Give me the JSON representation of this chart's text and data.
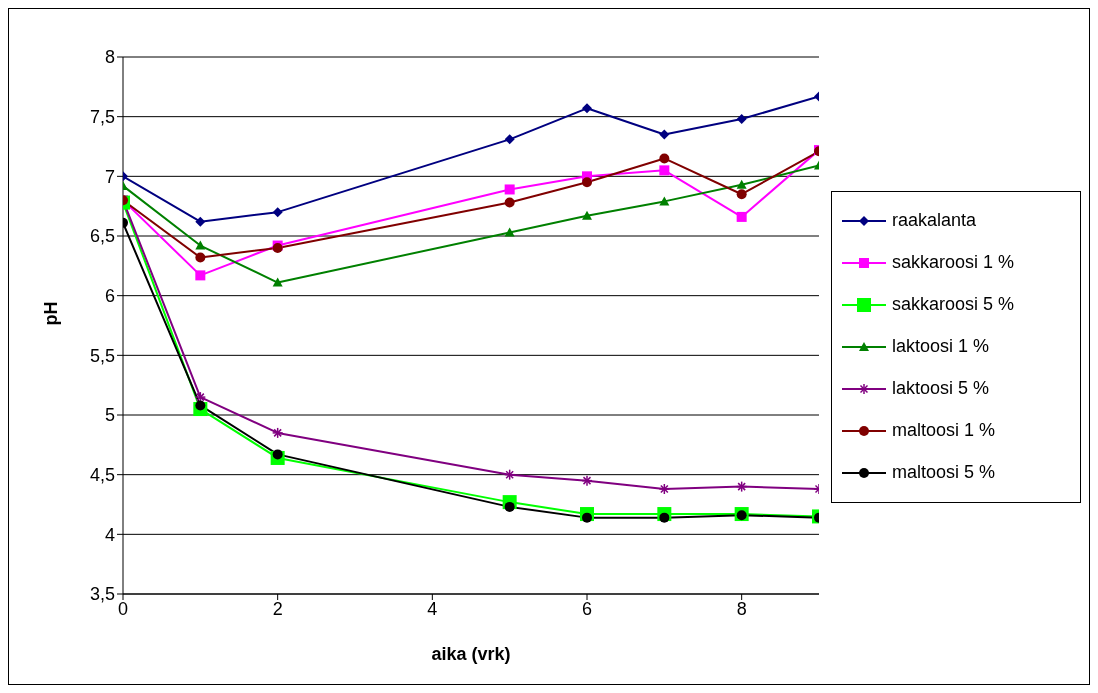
{
  "chart_data": {
    "type": "line",
    "xlabel": "aika (vrk)",
    "ylabel": "pH",
    "x": [
      0,
      1,
      2,
      5,
      6,
      7,
      8,
      9
    ],
    "xlim": [
      0,
      9
    ],
    "xticks": [
      0,
      2,
      4,
      6,
      8
    ],
    "ylim": [
      3.5,
      8
    ],
    "yticks": [
      {
        "value": 3.5,
        "label": "3,5"
      },
      4,
      {
        "value": 4.5,
        "label": "4,5"
      },
      5,
      {
        "value": 5.5,
        "label": "5,5"
      },
      6,
      {
        "value": 6.5,
        "label": "6,5"
      },
      7,
      {
        "value": 7.5,
        "label": "7,5"
      },
      8
    ],
    "grid": "y",
    "legend": "right",
    "line_style": "solid",
    "series": [
      {
        "name": "raakalanta",
        "color": "#000080",
        "marker": "diamond",
        "values": [
          7.0,
          6.62,
          6.7,
          7.31,
          7.57,
          7.35,
          7.48,
          7.67
        ]
      },
      {
        "name": "sakkaroosi 1 %",
        "color": "#ff00ff",
        "marker": "square",
        "values": [
          6.8,
          6.17,
          6.42,
          6.89,
          7.0,
          7.05,
          6.66,
          7.22
        ]
      },
      {
        "name": "sakkaroosi 5 %",
        "color": "#00ff00",
        "marker": "square",
        "values": [
          6.78,
          5.05,
          4.64,
          4.27,
          4.17,
          4.17,
          4.17,
          4.15
        ]
      },
      {
        "name": "laktoosi 1 %",
        "color": "#008000",
        "marker": "triangle",
        "values": [
          6.92,
          6.42,
          6.11,
          6.53,
          6.67,
          6.79,
          6.93,
          7.09
        ]
      },
      {
        "name": "laktoosi 5 %",
        "color": "#800080",
        "marker": "cross",
        "values": [
          6.8,
          5.15,
          4.85,
          4.5,
          4.45,
          4.38,
          4.4,
          4.38
        ]
      },
      {
        "name": "maltoosi 1 %",
        "color": "#800000",
        "marker": "circle",
        "values": [
          6.8,
          6.32,
          6.4,
          6.78,
          6.95,
          7.15,
          6.85,
          7.21
        ]
      },
      {
        "name": "maltoosi 5 %",
        "color": "#000000",
        "marker": "circle",
        "values": [
          6.61,
          5.08,
          4.67,
          4.23,
          4.14,
          4.14,
          4.16,
          4.14
        ]
      }
    ]
  }
}
